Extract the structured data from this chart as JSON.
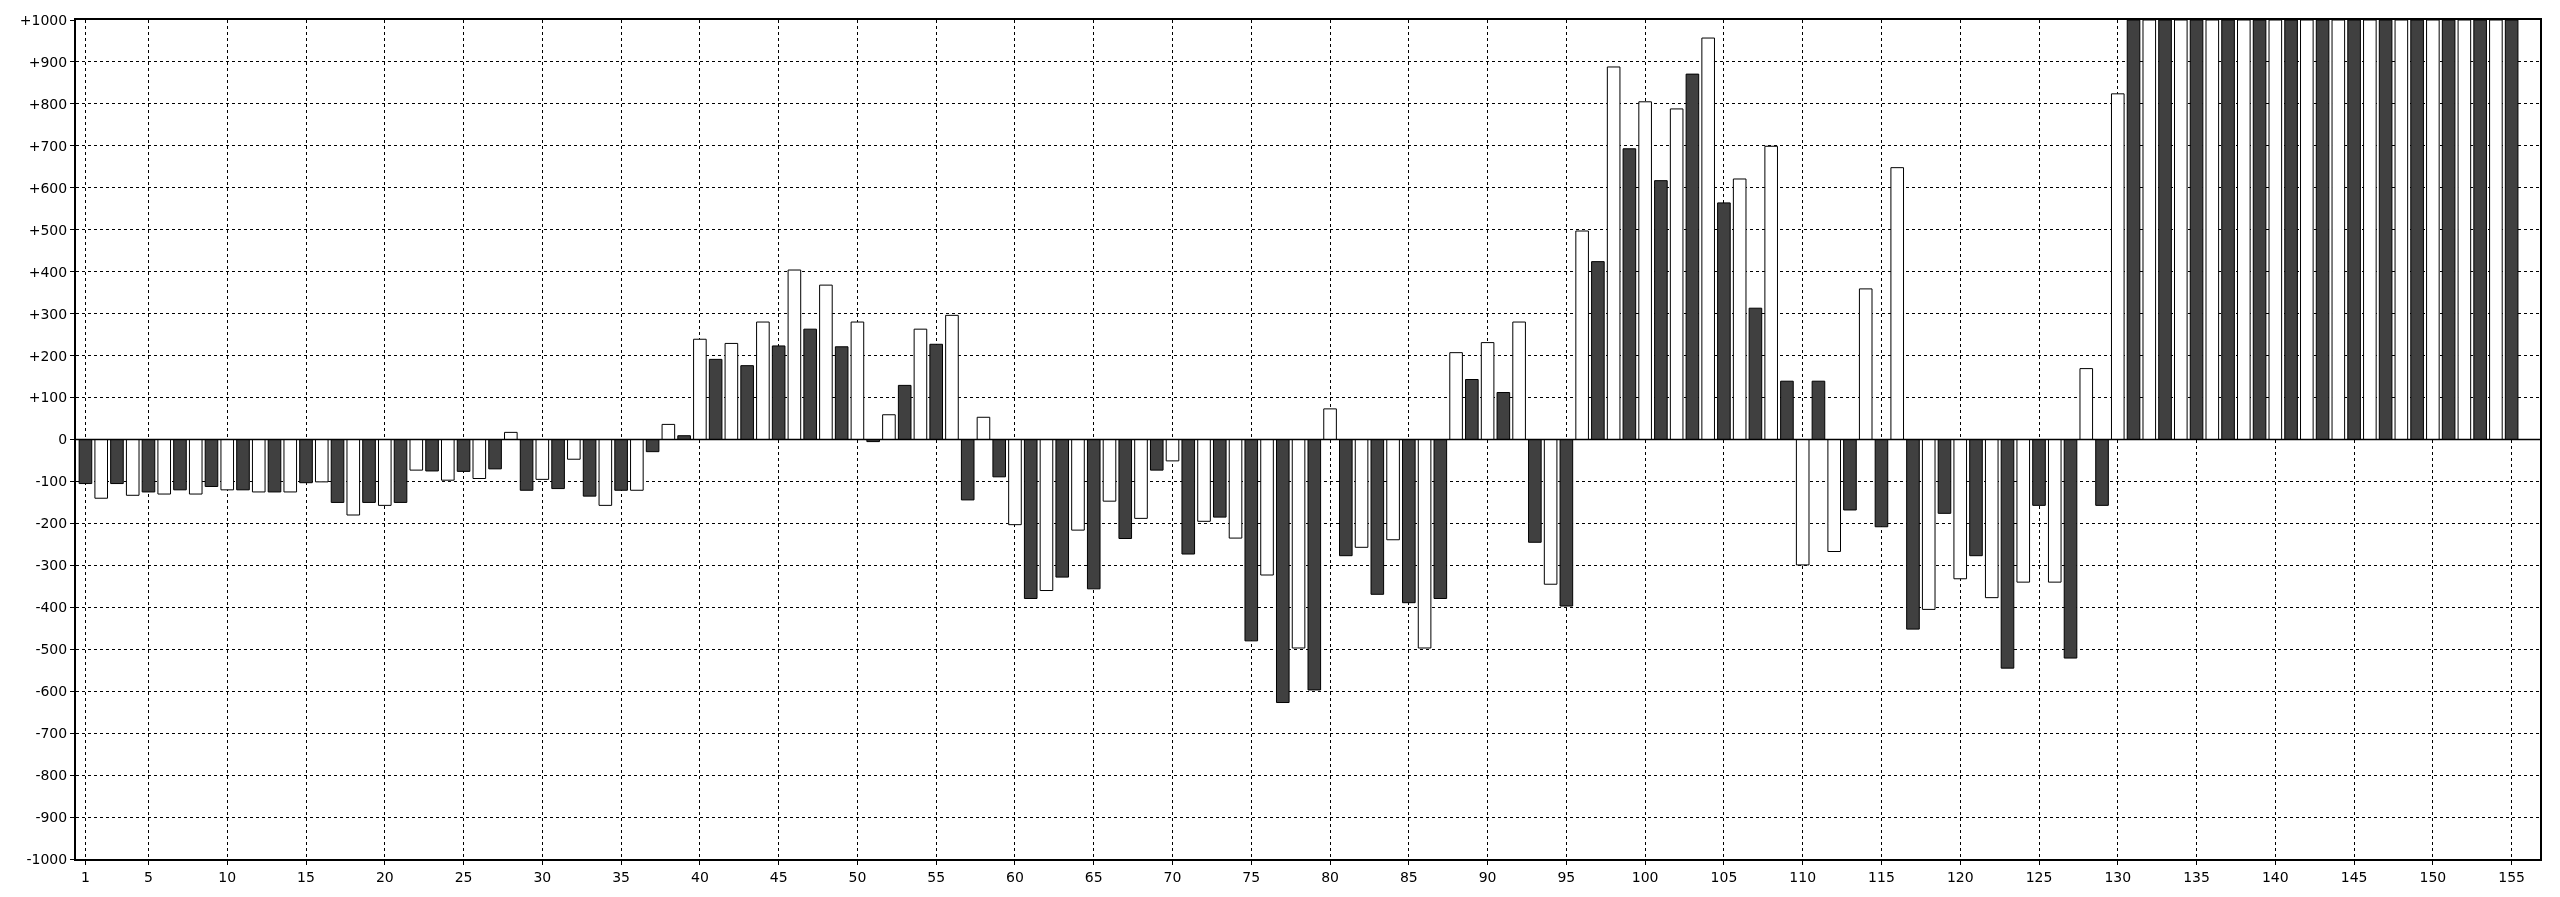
{
  "chart_data": {
    "type": "bar",
    "x": [
      1,
      2,
      3,
      4,
      5,
      6,
      7,
      8,
      9,
      10,
      11,
      12,
      13,
      14,
      15,
      16,
      17,
      18,
      19,
      20,
      21,
      22,
      23,
      24,
      25,
      26,
      27,
      28,
      29,
      30,
      31,
      32,
      33,
      34,
      35,
      36,
      37,
      38,
      39,
      40,
      41,
      42,
      43,
      44,
      45,
      46,
      47,
      48,
      49,
      50,
      51,
      52,
      53,
      54,
      55,
      56,
      57,
      58,
      59,
      60,
      61,
      62,
      63,
      64,
      65,
      66,
      67,
      68,
      69,
      70,
      71,
      72,
      73,
      74,
      75,
      76,
      77,
      78,
      79,
      80,
      81,
      82,
      83,
      84,
      85,
      86,
      87,
      88,
      89,
      90,
      91,
      92,
      93,
      94,
      95,
      96,
      97,
      98,
      99,
      100,
      101,
      102,
      103,
      104,
      105,
      106,
      107,
      108,
      109,
      110,
      111,
      112,
      113,
      114,
      115,
      116,
      117,
      118,
      119,
      120,
      121,
      122,
      123,
      124,
      125,
      126,
      127,
      128,
      129,
      130,
      131,
      132,
      133,
      134,
      135,
      136,
      137,
      138,
      139,
      140,
      141,
      142,
      143,
      144,
      145,
      146,
      147,
      148,
      149,
      150,
      151,
      152,
      153,
      154,
      155
    ],
    "values": [
      -105,
      -140,
      -105,
      -133,
      -125,
      -130,
      -120,
      -130,
      -112,
      -120,
      -120,
      -125,
      -125,
      -125,
      -103,
      -101,
      -150,
      -180,
      -150,
      -157,
      -150,
      -73,
      -75,
      -97,
      -76,
      -93,
      -70,
      17,
      -121,
      -95,
      -117,
      -47,
      -135,
      -157,
      -121,
      -121,
      -29,
      36,
      9,
      239,
      191,
      229,
      176,
      280,
      223,
      404,
      263,
      368,
      221,
      280,
      -5,
      59,
      129,
      263,
      227,
      296,
      -144,
      53,
      -89,
      -203,
      -379,
      -360,
      -328,
      -216,
      -356,
      -147,
      -236,
      -188,
      -73,
      -51,
      -273,
      -195,
      -185,
      -235,
      -480,
      -323,
      -627,
      -497,
      -597,
      73,
      -277,
      -257,
      -369,
      -239,
      -389,
      -497,
      -379,
      207,
      143,
      231,
      112,
      280,
      -245,
      -345,
      -397,
      497,
      424,
      888,
      693,
      805,
      617,
      788,
      871,
      957,
      564,
      621,
      313,
      699,
      139,
      -299,
      139,
      -267,
      -168,
      359,
      -208,
      648,
      -452,
      -405,
      -176,
      -332,
      -277,
      -377,
      -545,
      -340,
      -157,
      -340,
      -521,
      169,
      -157,
      824,
      1000,
      1000,
      1000,
      1000,
      1000,
      1000,
      1000,
      1000,
      1000,
      1000,
      1000,
      1000,
      1000,
      1000,
      1000,
      1000,
      1000,
      1000,
      1000,
      1000,
      1000,
      1000,
      1000,
      1000,
      1000
    ],
    "colors": [
      "#404040",
      "#ffffff",
      "#404040",
      "#ffffff",
      "#404040",
      "#ffffff",
      "#404040",
      "#ffffff",
      "#404040",
      "#ffffff",
      "#404040",
      "#ffffff",
      "#404040",
      "#ffffff",
      "#404040",
      "#ffffff",
      "#404040",
      "#ffffff",
      "#404040",
      "#ffffff",
      "#404040",
      "#ffffff",
      "#404040",
      "#ffffff",
      "#404040",
      "#ffffff",
      "#404040",
      "#ffffff",
      "#404040",
      "#ffffff",
      "#404040",
      "#ffffff",
      "#404040",
      "#ffffff",
      "#404040",
      "#ffffff",
      "#404040",
      "#ffffff",
      "#404040",
      "#ffffff",
      "#404040",
      "#ffffff",
      "#404040",
      "#ffffff",
      "#404040",
      "#ffffff",
      "#404040",
      "#ffffff",
      "#404040",
      "#ffffff",
      "#404040",
      "#ffffff",
      "#404040",
      "#ffffff",
      "#404040",
      "#ffffff",
      "#404040",
      "#ffffff",
      "#404040",
      "#ffffff",
      "#404040",
      "#ffffff",
      "#404040",
      "#ffffff",
      "#404040",
      "#ffffff",
      "#404040",
      "#ffffff",
      "#404040",
      "#ffffff",
      "#404040",
      "#ffffff",
      "#404040",
      "#ffffff",
      "#404040",
      "#ffffff",
      "#404040",
      "#ffffff",
      "#404040",
      "#ffffff",
      "#404040",
      "#ffffff",
      "#404040",
      "#ffffff",
      "#404040",
      "#ffffff",
      "#404040",
      "#ffffff",
      "#404040",
      "#ffffff",
      "#404040",
      "#ffffff",
      "#404040",
      "#ffffff",
      "#404040",
      "#ffffff",
      "#404040",
      "#ffffff",
      "#404040",
      "#ffffff",
      "#404040",
      "#ffffff",
      "#404040",
      "#ffffff",
      "#404040",
      "#ffffff",
      "#404040",
      "#ffffff",
      "#404040",
      "#ffffff",
      "#404040",
      "#ffffff",
      "#404040",
      "#ffffff",
      "#404040",
      "#ffffff",
      "#404040",
      "#ffffff",
      "#404040",
      "#ffffff",
      "#404040",
      "#ffffff",
      "#404040",
      "#ffffff",
      "#404040",
      "#ffffff",
      "#404040",
      "#ffffff",
      "#404040",
      "#ffffff",
      "#404040",
      "#ffffff",
      "#404040",
      "#ffffff",
      "#404040",
      "#ffffff",
      "#404040",
      "#ffffff",
      "#404040",
      "#ffffff",
      "#404040",
      "#ffffff",
      "#404040",
      "#ffffff",
      "#404040",
      "#ffffff",
      "#404040",
      "#ffffff",
      "#404040",
      "#ffffff",
      "#404040",
      "#ffffff",
      "#404040",
      "#ffffff",
      "#404040"
    ],
    "xlim": [
      0.4,
      156.8
    ],
    "xticks": [
      1,
      5,
      10,
      15,
      20,
      25,
      30,
      35,
      40,
      45,
      50,
      55,
      60,
      65,
      70,
      75,
      80,
      85,
      90,
      95,
      100,
      105,
      110,
      115,
      120,
      125,
      130,
      135,
      140,
      145,
      150,
      155
    ],
    "ylim": [
      -1000,
      1000
    ],
    "yticks": [
      {
        "value": -1000,
        "label": "-1000"
      },
      {
        "value": -900,
        "label": "-900"
      },
      {
        "value": -800,
        "label": "-800"
      },
      {
        "value": -700,
        "label": "-700"
      },
      {
        "value": -600,
        "label": "-600"
      },
      {
        "value": -500,
        "label": "-500"
      },
      {
        "value": -400,
        "label": "-400"
      },
      {
        "value": -300,
        "label": "-300"
      },
      {
        "value": -200,
        "label": "-200"
      },
      {
        "value": -100,
        "label": "-100"
      },
      0,
      {
        "value": 100,
        "label": "+100"
      },
      {
        "value": 200,
        "label": "+200"
      },
      {
        "value": 300,
        "label": "+300"
      },
      {
        "value": 400,
        "label": "+400"
      },
      {
        "value": 500,
        "label": "+500"
      },
      {
        "value": 600,
        "label": "+600"
      },
      {
        "value": 700,
        "label": "+700"
      },
      {
        "value": 800,
        "label": "+800"
      },
      {
        "value": 900,
        "label": "+900"
      },
      {
        "value": 1000,
        "label": "+1000"
      }
    ],
    "grid": true
  }
}
